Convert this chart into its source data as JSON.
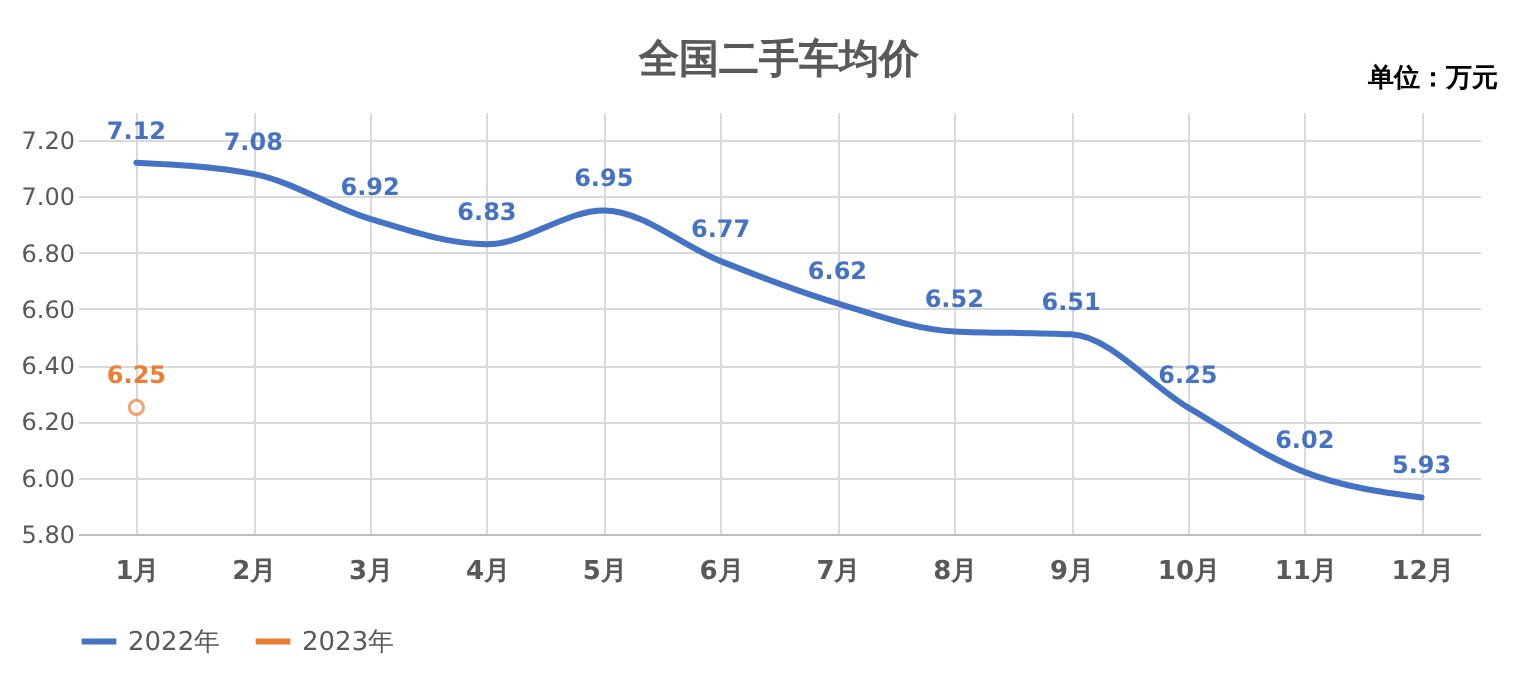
{
  "chart_data": {
    "type": "line",
    "title": "全国二手车均价",
    "annotations": [
      "单位：万元"
    ],
    "categories": [
      "1月",
      "2月",
      "3月",
      "4月",
      "5月",
      "6月",
      "7月",
      "8月",
      "9月",
      "10月",
      "11月",
      "12月"
    ],
    "series": [
      {
        "name": "2022年",
        "color": "#4472c4",
        "marker": "none",
        "values": [
          7.12,
          7.08,
          6.92,
          6.83,
          6.95,
          6.77,
          6.62,
          6.52,
          6.51,
          6.25,
          6.02,
          5.93
        ]
      },
      {
        "name": "2023年",
        "color": "#ed7d31",
        "marker": "circle",
        "values": [
          6.25,
          null,
          null,
          null,
          null,
          null,
          null,
          null,
          null,
          null,
          null,
          null
        ]
      }
    ],
    "ylim": [
      5.8,
      7.3
    ],
    "yticks": [
      {
        "value": 5.8,
        "label": "5.80"
      },
      {
        "value": 6.0,
        "label": "6.00"
      },
      {
        "value": 6.2,
        "label": "6.20"
      },
      {
        "value": 6.4,
        "label": "6.40"
      },
      {
        "value": 6.6,
        "label": "6.60"
      },
      {
        "value": 6.8,
        "label": "6.80"
      },
      {
        "value": 7.0,
        "label": "7.00"
      },
      {
        "value": 7.2,
        "label": "7.20"
      }
    ],
    "grid": true,
    "legend": "bottom",
    "data_labels": true,
    "line_style": "solid"
  }
}
